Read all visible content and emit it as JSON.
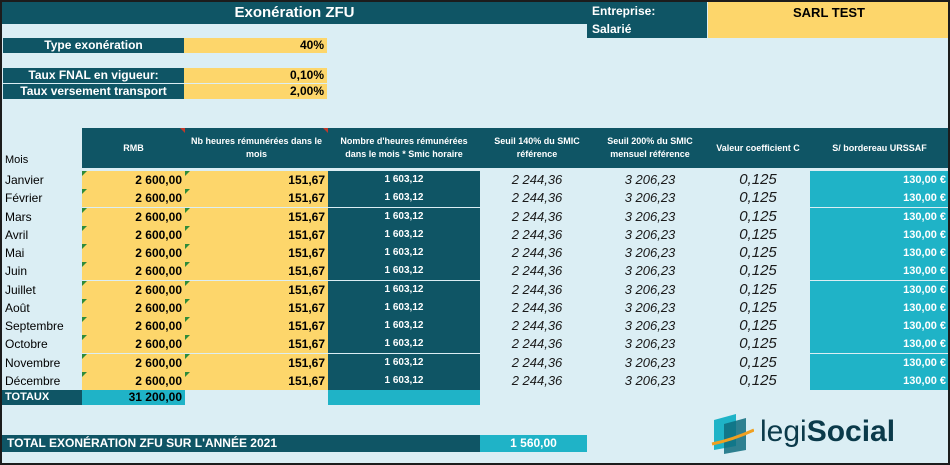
{
  "header": {
    "title": "Exonération ZFU",
    "entreprise_label": "Entreprise:",
    "salarie_label": "Salarié",
    "entreprise_value": "SARL TEST"
  },
  "params": {
    "type_exo_label": "Type exonération",
    "type_exo_value": "40%",
    "fnal_label": "Taux FNAL en vigueur:",
    "fnal_value": "0,10%",
    "transport_label": "Taux versement transport",
    "transport_value": "2,00%"
  },
  "table": {
    "headers": {
      "mois": "Mois",
      "rmb": "RMB",
      "nbh": "Nb heures rémunérées dans le mois",
      "prod": "Nombre d'heures rémunérées dans le mois * Smic horaire",
      "s140": "Seuil 140% du SMIC référence",
      "s200": "Seuil 200% du SMIC mensuel référence",
      "coef": "Valeur coefficient C",
      "urssaf": "S/ bordereau URSSAF"
    },
    "rows": [
      {
        "mois": "Janvier",
        "rmb": "2 600,00",
        "nbh": "151,67",
        "prod": "1 603,12",
        "s140": "2 244,36",
        "s200": "3 206,23",
        "coef": "0,125",
        "urssaf": "130,00 €"
      },
      {
        "mois": "Février",
        "rmb": "2 600,00",
        "nbh": "151,67",
        "prod": "1 603,12",
        "s140": "2 244,36",
        "s200": "3 206,23",
        "coef": "0,125",
        "urssaf": "130,00 €"
      },
      {
        "mois": "Mars",
        "rmb": "2 600,00",
        "nbh": "151,67",
        "prod": "1 603,12",
        "s140": "2 244,36",
        "s200": "3 206,23",
        "coef": "0,125",
        "urssaf": "130,00 €"
      },
      {
        "mois": "Avril",
        "rmb": "2 600,00",
        "nbh": "151,67",
        "prod": "1 603,12",
        "s140": "2 244,36",
        "s200": "3 206,23",
        "coef": "0,125",
        "urssaf": "130,00 €"
      },
      {
        "mois": "Mai",
        "rmb": "2 600,00",
        "nbh": "151,67",
        "prod": "1 603,12",
        "s140": "2 244,36",
        "s200": "3 206,23",
        "coef": "0,125",
        "urssaf": "130,00 €"
      },
      {
        "mois": "Juin",
        "rmb": "2 600,00",
        "nbh": "151,67",
        "prod": "1 603,12",
        "s140": "2 244,36",
        "s200": "3 206,23",
        "coef": "0,125",
        "urssaf": "130,00 €"
      },
      {
        "mois": "Juillet",
        "rmb": "2 600,00",
        "nbh": "151,67",
        "prod": "1 603,12",
        "s140": "2 244,36",
        "s200": "3 206,23",
        "coef": "0,125",
        "urssaf": "130,00 €"
      },
      {
        "mois": "Août",
        "rmb": "2 600,00",
        "nbh": "151,67",
        "prod": "1 603,12",
        "s140": "2 244,36",
        "s200": "3 206,23",
        "coef": "0,125",
        "urssaf": "130,00 €"
      },
      {
        "mois": "Septembre",
        "rmb": "2 600,00",
        "nbh": "151,67",
        "prod": "1 603,12",
        "s140": "2 244,36",
        "s200": "3 206,23",
        "coef": "0,125",
        "urssaf": "130,00 €"
      },
      {
        "mois": "Octobre",
        "rmb": "2 600,00",
        "nbh": "151,67",
        "prod": "1 603,12",
        "s140": "2 244,36",
        "s200": "3 206,23",
        "coef": "0,125",
        "urssaf": "130,00 €"
      },
      {
        "mois": "Novembre",
        "rmb": "2 600,00",
        "nbh": "151,67",
        "prod": "1 603,12",
        "s140": "2 244,36",
        "s200": "3 206,23",
        "coef": "0,125",
        "urssaf": "130,00 €"
      },
      {
        "mois": "Décembre",
        "rmb": "2 600,00",
        "nbh": "151,67",
        "prod": "1 603,12",
        "s140": "2 244,36",
        "s200": "3 206,23",
        "coef": "0,125",
        "urssaf": "130,00 €"
      }
    ],
    "totaux_label": "TOTAUX",
    "totaux_rmb": "31 200,00"
  },
  "footer": {
    "total_label": "TOTAL EXONÉRATION ZFU SUR L'ANNÉE 2021",
    "total_value": "1 560,00"
  },
  "logo": {
    "text_part1": "legi",
    "text_part2": "Social"
  },
  "colors": {
    "teal": "#0f5565",
    "yellow": "#fdd66b",
    "light_blue": "#dbeef4",
    "cyan": "#1fb3c7"
  }
}
